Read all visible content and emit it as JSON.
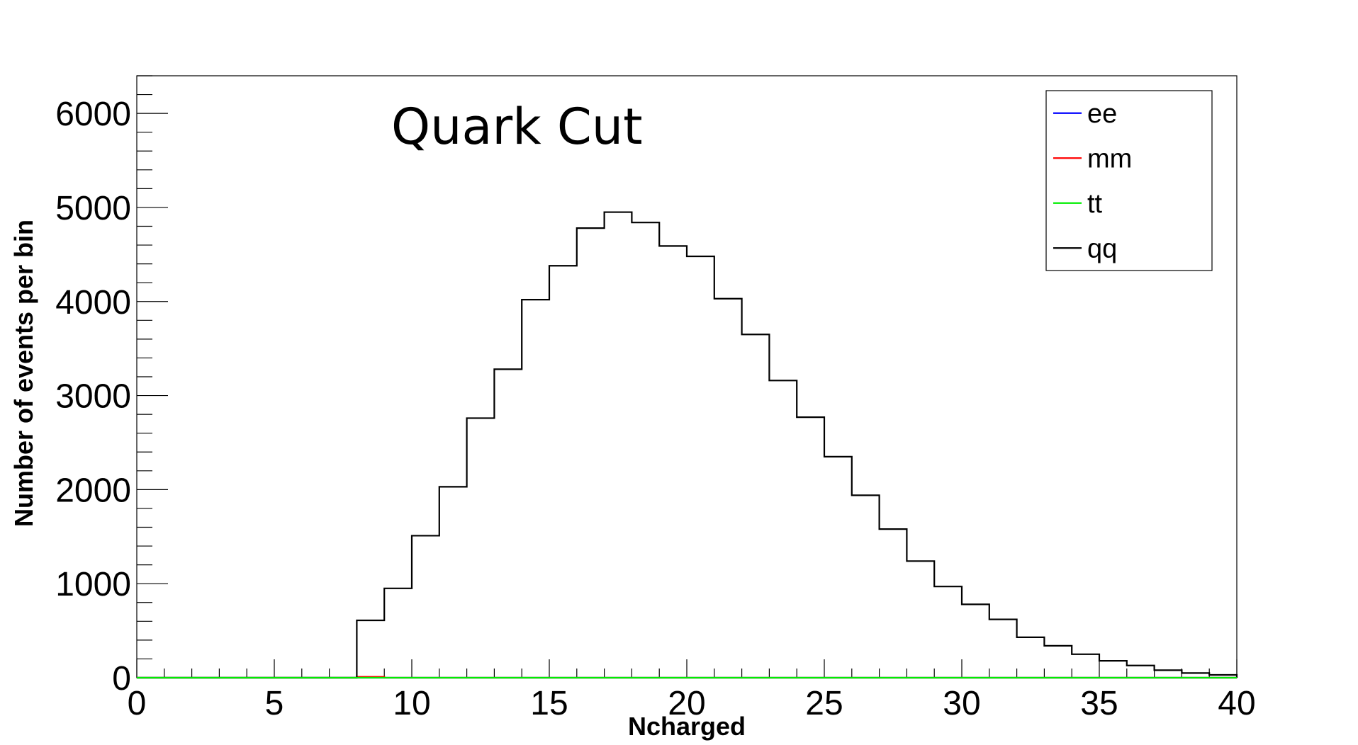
{
  "chart_data": {
    "type": "histogram",
    "title": "",
    "annotation": "Quark Cut",
    "xlabel": "Ncharged",
    "ylabel": "Number of events per bin",
    "xlim": [
      0,
      40
    ],
    "ylim": [
      0,
      6400
    ],
    "x_ticks": [
      0,
      5,
      10,
      15,
      20,
      25,
      30,
      35,
      40
    ],
    "y_ticks": [
      0,
      1000,
      2000,
      3000,
      4000,
      5000,
      6000
    ],
    "bin_width": 1,
    "bin_edges": [
      0,
      1,
      2,
      3,
      4,
      5,
      6,
      7,
      8,
      9,
      10,
      11,
      12,
      13,
      14,
      15,
      16,
      17,
      18,
      19,
      20,
      21,
      22,
      23,
      24,
      25,
      26,
      27,
      28,
      29,
      30,
      31,
      32,
      33,
      34,
      35,
      36,
      37,
      38,
      39,
      40
    ],
    "grid": false,
    "legend_position": "top-right",
    "series": [
      {
        "name": "ee",
        "color": "#0000ff",
        "values": [
          0,
          0,
          0,
          0,
          0,
          0,
          0,
          0,
          0,
          0,
          0,
          0,
          0,
          0,
          0,
          0,
          0,
          0,
          0,
          0,
          0,
          0,
          0,
          0,
          0,
          0,
          0,
          0,
          0,
          0,
          0,
          0,
          0,
          0,
          0,
          0,
          0,
          0,
          0,
          0
        ]
      },
      {
        "name": "mm",
        "color": "#ff0000",
        "values": [
          0,
          0,
          0,
          0,
          0,
          0,
          0,
          0,
          10,
          0,
          0,
          0,
          0,
          0,
          0,
          0,
          0,
          0,
          0,
          0,
          0,
          0,
          0,
          0,
          0,
          0,
          0,
          0,
          0,
          0,
          0,
          0,
          0,
          0,
          0,
          0,
          0,
          0,
          0,
          0
        ]
      },
      {
        "name": "tt",
        "color": "#00ee00",
        "values": [
          0,
          0,
          0,
          0,
          0,
          0,
          0,
          0,
          0,
          0,
          0,
          0,
          0,
          0,
          0,
          0,
          0,
          0,
          0,
          0,
          0,
          0,
          0,
          0,
          0,
          0,
          0,
          0,
          0,
          0,
          0,
          0,
          0,
          0,
          0,
          0,
          0,
          0,
          0,
          0
        ]
      },
      {
        "name": "qq",
        "color": "#000000",
        "values": [
          0,
          0,
          0,
          0,
          0,
          0,
          0,
          0,
          610,
          950,
          1510,
          2030,
          2760,
          3280,
          4020,
          4380,
          4780,
          4950,
          4840,
          4590,
          4480,
          4030,
          3650,
          3160,
          2770,
          2350,
          1940,
          1580,
          1240,
          970,
          780,
          620,
          430,
          340,
          250,
          180,
          130,
          80,
          50,
          30
        ]
      }
    ]
  }
}
